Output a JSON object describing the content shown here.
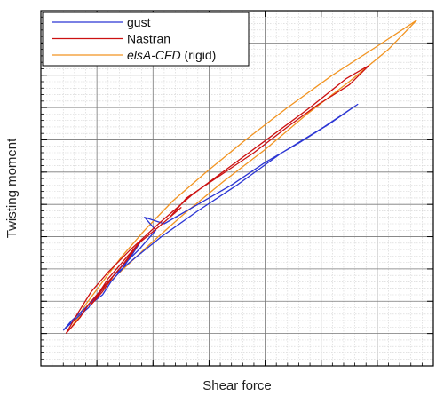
{
  "chart_data": {
    "type": "line",
    "xlabel": "Shear force",
    "ylabel": "Twisting moment",
    "xlim": [
      -2,
      12
    ],
    "ylim": [
      -1,
      10
    ],
    "grid": true,
    "minor_grid": true,
    "tick_labels_visible": false,
    "legend_position": "top-left",
    "series": [
      {
        "name": "gust",
        "color": "#2b35d4",
        "label_style": "normal",
        "x": [
          -1.2,
          -0.7,
          -0.3,
          0.0,
          0.3,
          0.6,
          1.0,
          1.3,
          1.6,
          1.3,
          0.9,
          0.5,
          0.2,
          -0.1,
          0.3,
          0.8,
          1.5,
          2.1,
          1.7,
          2.4,
          3.6,
          4.8,
          6.0,
          7.2,
          8.3,
          9.3,
          8.1,
          6.6,
          5.0,
          3.6,
          2.3,
          1.3,
          0.6,
          0.1,
          -0.4,
          -0.9,
          -1.2
        ],
        "y": [
          0.1,
          0.5,
          0.8,
          1.2,
          1.5,
          1.8,
          2.2,
          2.6,
          2.9,
          2.5,
          2.0,
          1.6,
          1.2,
          1.0,
          1.5,
          2.0,
          2.6,
          3.2,
          3.6,
          3.4,
          4.0,
          4.6,
          5.3,
          5.9,
          6.5,
          7.1,
          6.4,
          5.6,
          4.6,
          3.8,
          3.0,
          2.3,
          1.8,
          1.3,
          0.8,
          0.4,
          0.1
        ]
      },
      {
        "name": "Nastran",
        "color": "#cc1111",
        "label_style": "normal",
        "x": [
          -1.1,
          -0.6,
          -0.3,
          0.1,
          0.4,
          0.8,
          1.2,
          1.5,
          1.1,
          0.6,
          0.2,
          -0.2,
          0.3,
          0.9,
          1.5,
          2.2,
          3.0,
          2.6,
          3.2,
          4.4,
          5.6,
          6.8,
          7.9,
          9.0,
          9.7,
          8.9,
          7.6,
          6.2,
          4.8,
          3.4,
          2.2,
          1.2,
          0.4,
          -0.2,
          -0.7,
          -1.1
        ],
        "y": [
          0.0,
          0.5,
          0.9,
          1.3,
          1.7,
          2.1,
          2.5,
          2.8,
          2.3,
          1.8,
          1.3,
          0.9,
          1.5,
          2.1,
          2.8,
          3.3,
          3.9,
          3.6,
          4.2,
          4.9,
          5.6,
          6.4,
          7.1,
          7.7,
          8.3,
          7.9,
          7.0,
          6.1,
          5.2,
          4.3,
          3.4,
          2.6,
          1.9,
          1.3,
          0.6,
          0.0
        ]
      },
      {
        "name": "elsA-CFD",
        "name_suffix": " (rigid)",
        "color": "#f29421",
        "label_style": "italic",
        "x": [
          -0.9,
          -0.4,
          0.2,
          0.9,
          1.7,
          2.7,
          3.9,
          5.3,
          6.8,
          8.4,
          10.0,
          11.4,
          10.4,
          9.0,
          7.5,
          6.0,
          4.5,
          3.1,
          1.8,
          0.7,
          -0.2,
          -0.9
        ],
        "y": [
          0.2,
          0.9,
          1.6,
          2.4,
          3.2,
          4.1,
          5.0,
          6.0,
          7.0,
          8.0,
          8.9,
          9.7,
          8.8,
          7.8,
          6.8,
          5.7,
          4.7,
          3.7,
          2.7,
          1.8,
          1.0,
          0.2
        ]
      }
    ]
  }
}
